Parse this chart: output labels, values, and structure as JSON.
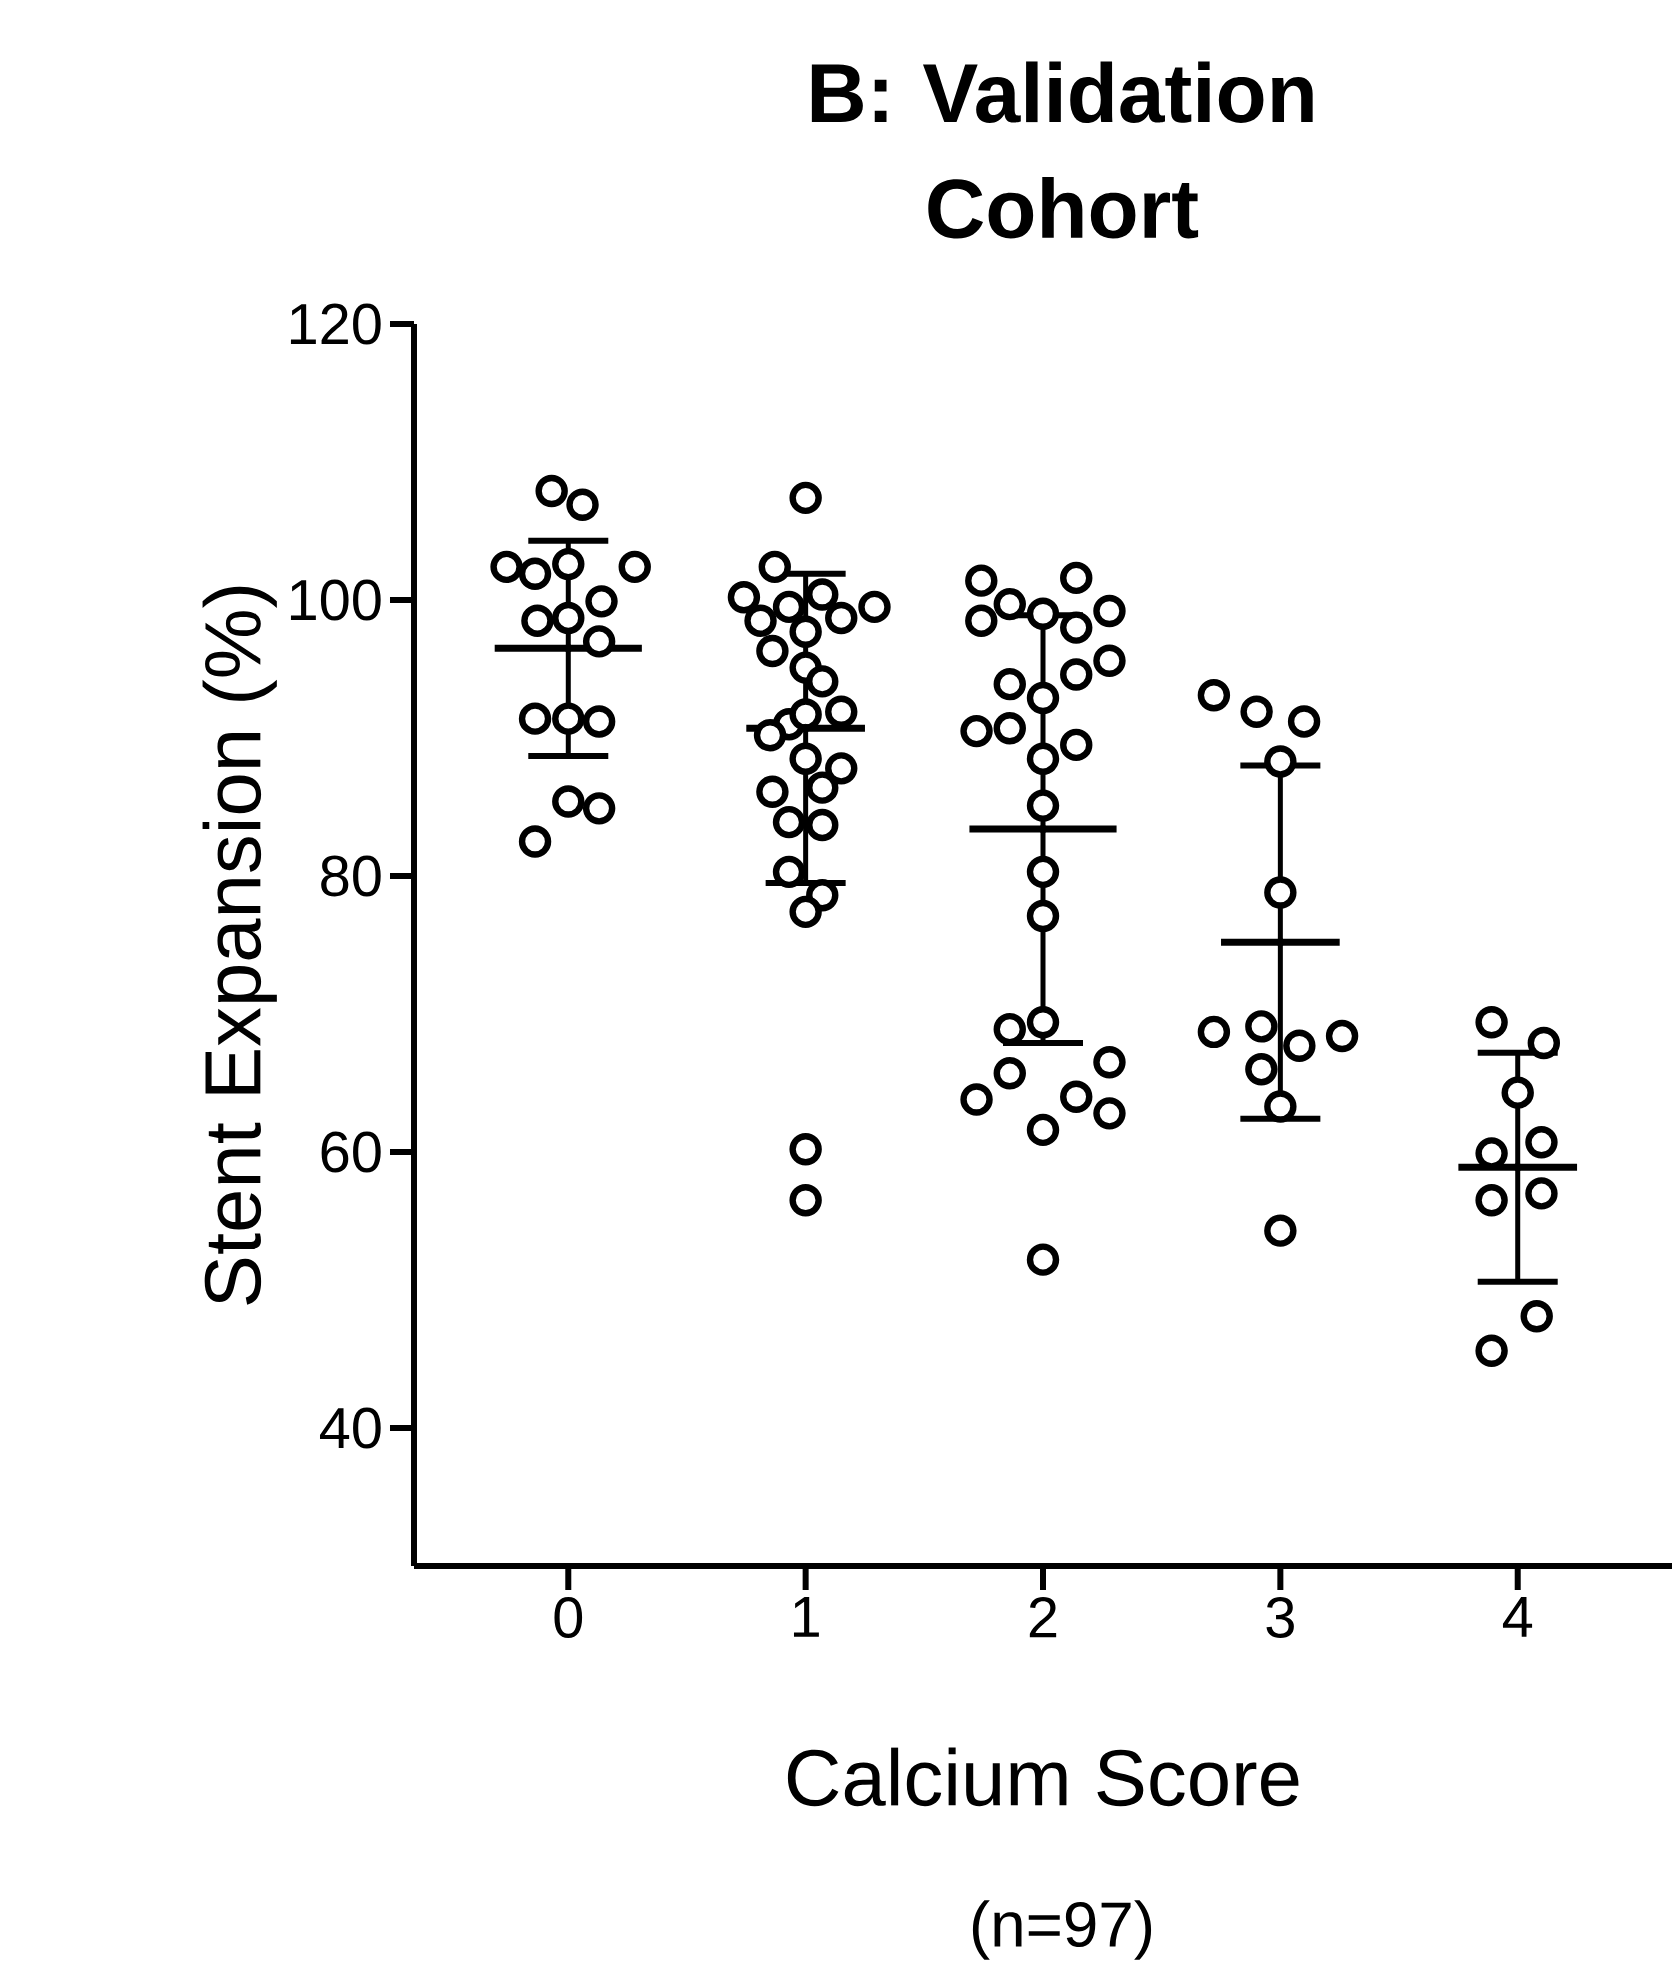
{
  "chart_data": {
    "type": "scatter",
    "title": "B: Validation Cohort",
    "xlabel": "Calcium Score",
    "ylabel": "Stent Expansion (%)",
    "annotations": [
      "(n=97)"
    ],
    "xlim": [
      -0.65,
      4.65
    ],
    "xticks": [
      0,
      1,
      2,
      3,
      4
    ],
    "ylim": [
      30,
      120
    ],
    "yticks": [
      40,
      60,
      80,
      100,
      120
    ],
    "series": [
      {
        "color": "#000000",
        "marker": "circle",
        "x": [
          -0.07,
          0.06,
          -0.26,
          -0.14,
          0,
          0.28,
          0.14,
          -0.13,
          0,
          0.13,
          -0.14,
          0,
          0.13,
          0,
          0.13,
          -0.14,
          1,
          0.87,
          0.74,
          0.93,
          1.07,
          1.29,
          0.81,
          1.15,
          1,
          0.86,
          1,
          1.07,
          1.15,
          0.93,
          0.85,
          1,
          1,
          1.15,
          0.86,
          1.07,
          0.93,
          1.07,
          0.93,
          1.07,
          1,
          1,
          1,
          1.74,
          2.14,
          1.74,
          1.86,
          2,
          2.14,
          2.28,
          2.28,
          2.14,
          1.86,
          2,
          1.72,
          1.86,
          2.14,
          2,
          2,
          2,
          2,
          1.86,
          2,
          1.86,
          1.72,
          2.14,
          2.28,
          2.28,
          2,
          2,
          2.72,
          2.9,
          3.1,
          3,
          3,
          2.72,
          2.92,
          3.08,
          3.26,
          2.92,
          3,
          3,
          3.89,
          4.11,
          4,
          3.89,
          4.1,
          3.89,
          4.1,
          4.08,
          3.89
        ],
        "values": [
          107.9,
          106.9,
          102.4,
          101.9,
          102.6,
          102.4,
          99.9,
          98.5,
          98.7,
          97.0,
          91.4,
          91.4,
          91.2,
          85.4,
          84.9,
          82.5,
          107.4,
          102.4,
          100.2,
          99.5,
          100.4,
          99.5,
          98.5,
          98.7,
          97.7,
          96.3,
          95.1,
          94.1,
          91.9,
          91.0,
          90.2,
          91.7,
          88.5,
          87.8,
          86.1,
          86.4,
          83.9,
          83.7,
          80.3,
          78.6,
          77.4,
          60.2,
          56.5,
          101.4,
          101.6,
          98.5,
          99.7,
          99.0,
          98.0,
          99.2,
          95.6,
          94.6,
          93.9,
          92.9,
          90.5,
          90.7,
          89.5,
          88.5,
          85.1,
          80.3,
          77.1,
          68.9,
          69.4,
          65.7,
          63.8,
          64.0,
          66.5,
          62.8,
          61.6,
          52.2,
          93.1,
          91.9,
          91.2,
          88.3,
          78.8,
          68.7,
          69.1,
          67.7,
          68.4,
          66.0,
          63.3,
          54.3,
          69.4,
          67.9,
          64.3,
          59.9,
          60.7,
          56.5,
          57.0,
          48.1,
          45.6
        ]
      },
      {
        "color": "#000000",
        "x": [
          0,
          1,
          2,
          3,
          4
        ],
        "values": [
          96.5,
          90.7,
          83.4,
          75.2,
          58.9
        ],
        "errors": [
          7.8,
          11.2,
          15.5,
          12.8,
          8.3
        ],
        "xerrors": [
          0.31,
          0.25,
          0.31,
          0.25,
          0.25
        ]
      }
    ]
  }
}
